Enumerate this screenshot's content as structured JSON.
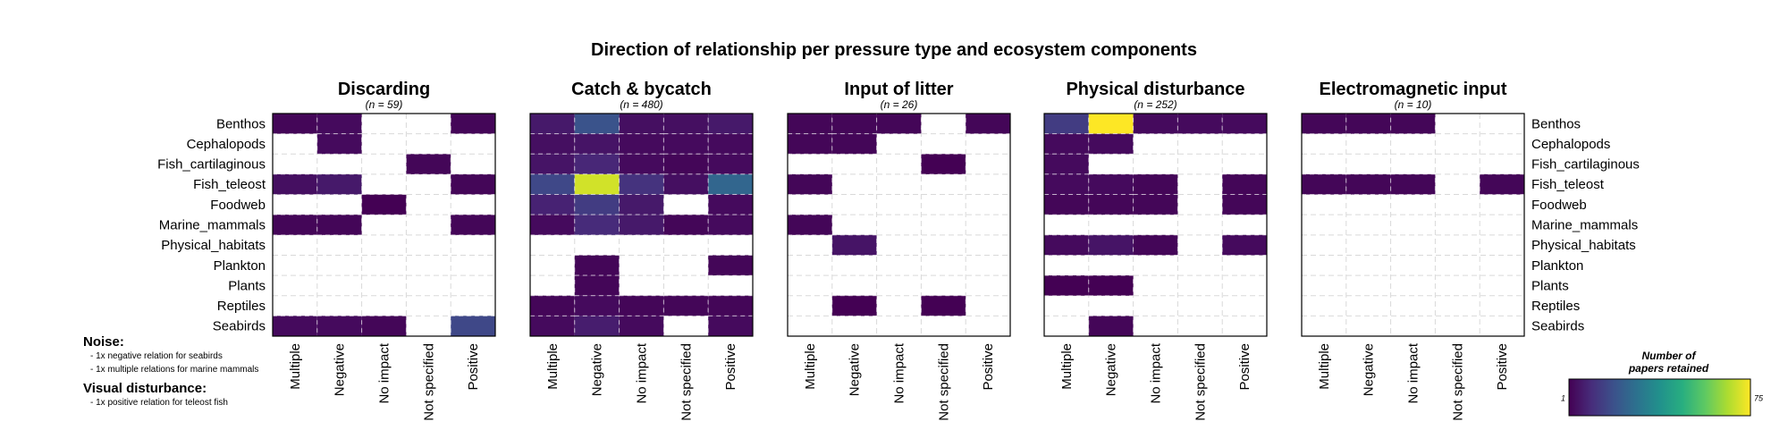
{
  "title": "Direction of relationship per pressure type and ecosystem components",
  "notes": {
    "noise_heading": "Noise:",
    "noise_items": [
      "- 1x negative relation for seabirds",
      "- 1x multiple relations for marine mammals"
    ],
    "visual_heading": "Visual disturbance:",
    "visual_items": [
      "- 1x positive relation for teleost fish"
    ]
  },
  "colors": {
    "scale_low": "#440154",
    "scale_high": "#fde725",
    "grid": "#d9d9d9",
    "empty": "#ffffff"
  },
  "chart_data": {
    "type": "heatmap",
    "color_scale": "viridis",
    "rows": [
      "Benthos",
      "Cephalopods",
      "Fish_cartilaginous",
      "Fish_teleost",
      "Foodweb",
      "Marine_mammals",
      "Physical_habitats",
      "Plankton",
      "Plants",
      "Reptiles",
      "Seabirds"
    ],
    "columns": [
      "Multiple",
      "Negative",
      "No impact",
      "Not specified",
      "Positive"
    ],
    "legend": {
      "title": [
        "Number of",
        "papers retained"
      ],
      "min": 1,
      "max": 75,
      "min_label": "1",
      "max_label": "75"
    },
    "panels": [
      {
        "title": "Discarding",
        "subtitle": "(n = 59)",
        "values": [
          [
            2,
            3,
            null,
            null,
            2
          ],
          [
            null,
            3,
            null,
            null,
            null
          ],
          [
            null,
            null,
            null,
            2,
            null
          ],
          [
            4,
            6,
            null,
            null,
            2
          ],
          [
            null,
            null,
            1,
            null,
            null
          ],
          [
            2,
            2,
            null,
            null,
            2
          ],
          [
            null,
            null,
            null,
            null,
            null
          ],
          [
            null,
            null,
            null,
            null,
            null
          ],
          [
            null,
            null,
            null,
            null,
            null
          ],
          [
            null,
            null,
            null,
            null,
            null
          ],
          [
            3,
            3,
            2,
            null,
            17
          ]
        ]
      },
      {
        "title": "Catch & bycatch",
        "subtitle": "(n = 480)",
        "values": [
          [
            6,
            20,
            4,
            4,
            6
          ],
          [
            4,
            5,
            3,
            3,
            3
          ],
          [
            5,
            9,
            3,
            2,
            3
          ],
          [
            17,
            70,
            12,
            4,
            25
          ],
          [
            8,
            14,
            6,
            null,
            3
          ],
          [
            3,
            10,
            6,
            2,
            3
          ],
          [
            null,
            null,
            null,
            null,
            null
          ],
          [
            null,
            2,
            null,
            null,
            2
          ],
          [
            null,
            2,
            null,
            null,
            null
          ],
          [
            2,
            3,
            2,
            2,
            2
          ],
          [
            3,
            7,
            3,
            null,
            3
          ]
        ]
      },
      {
        "title": "Input of litter",
        "subtitle": "(n = 26)",
        "values": [
          [
            2,
            2,
            2,
            null,
            2
          ],
          [
            2,
            2,
            null,
            null,
            null
          ],
          [
            null,
            null,
            null,
            1,
            null
          ],
          [
            2,
            null,
            null,
            null,
            null
          ],
          [
            null,
            null,
            null,
            null,
            null
          ],
          [
            2,
            null,
            null,
            null,
            null
          ],
          [
            null,
            5,
            null,
            null,
            null
          ],
          [
            null,
            null,
            null,
            null,
            null
          ],
          [
            null,
            null,
            null,
            null,
            null
          ],
          [
            null,
            1,
            null,
            1,
            null
          ],
          [
            null,
            null,
            null,
            null,
            null
          ]
        ]
      },
      {
        "title": "Physical disturbance",
        "subtitle": "(n = 252)",
        "values": [
          [
            14,
            75,
            3,
            3,
            3
          ],
          [
            3,
            3,
            null,
            null,
            null
          ],
          [
            3,
            null,
            null,
            null,
            null
          ],
          [
            3,
            3,
            2,
            null,
            2
          ],
          [
            2,
            2,
            2,
            null,
            2
          ],
          [
            null,
            null,
            null,
            null,
            null
          ],
          [
            3,
            5,
            2,
            null,
            3
          ],
          [
            null,
            null,
            null,
            null,
            null
          ],
          [
            1,
            1,
            null,
            null,
            null
          ],
          [
            null,
            null,
            null,
            null,
            null
          ],
          [
            null,
            2,
            null,
            null,
            null
          ]
        ]
      },
      {
        "title": "Electromagnetic input",
        "subtitle": "(n = 10)",
        "values": [
          [
            2,
            2,
            2,
            null,
            null
          ],
          [
            null,
            null,
            null,
            null,
            null
          ],
          [
            null,
            null,
            null,
            null,
            null
          ],
          [
            2,
            2,
            2,
            null,
            2
          ],
          [
            null,
            null,
            null,
            null,
            null
          ],
          [
            null,
            null,
            null,
            null,
            null
          ],
          [
            null,
            null,
            null,
            null,
            null
          ],
          [
            null,
            null,
            null,
            null,
            null
          ],
          [
            null,
            null,
            null,
            null,
            null
          ],
          [
            null,
            null,
            null,
            null,
            null
          ],
          [
            null,
            null,
            null,
            null,
            null
          ]
        ]
      }
    ]
  }
}
